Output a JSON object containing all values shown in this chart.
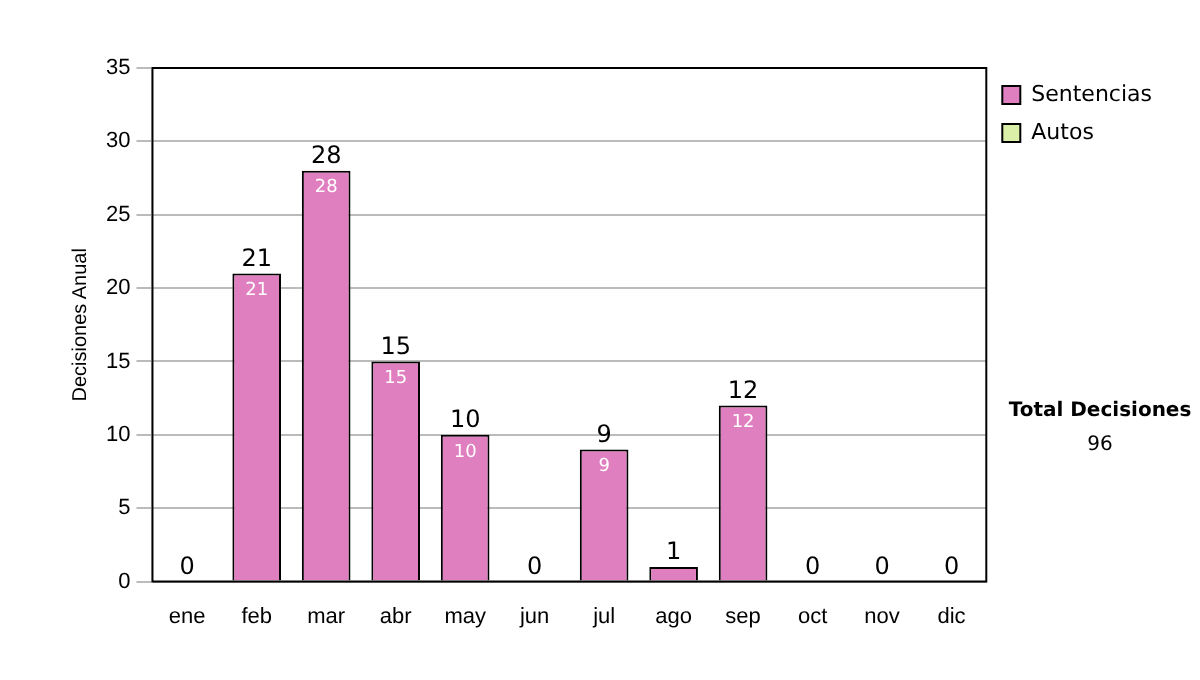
{
  "chart_data": {
    "type": "bar",
    "ylabel": "Decisiones Anual",
    "categories": [
      "ene",
      "feb",
      "mar",
      "abr",
      "may",
      "jun",
      "jul",
      "ago",
      "sep",
      "oct",
      "nov",
      "dic"
    ],
    "series": [
      {
        "name": "Sentencias",
        "color": "#e07fc0",
        "values": [
          0,
          21,
          28,
          15,
          10,
          0,
          9,
          1,
          12,
          0,
          0,
          0
        ],
        "value_labels": [
          null,
          "21",
          "28",
          "15",
          "10",
          null,
          "9",
          null,
          "12",
          null,
          null,
          null
        ]
      },
      {
        "name": "Autos",
        "color": "#dcefa8",
        "values": [
          0,
          0,
          0,
          0,
          0,
          0,
          0,
          0,
          0,
          0,
          0,
          0
        ]
      }
    ],
    "stacked": true,
    "totals": [
      "0",
      "21",
      "28",
      "15",
      "10",
      "0",
      "9",
      "1",
      "12",
      "0",
      "0",
      "0"
    ],
    "ylim": [
      0,
      35
    ],
    "yticks": [
      0,
      5,
      10,
      15,
      20,
      25,
      30,
      35
    ],
    "grid": "y",
    "legend": "right",
    "annotations": [
      "Total Decisiones",
      "96"
    ]
  }
}
